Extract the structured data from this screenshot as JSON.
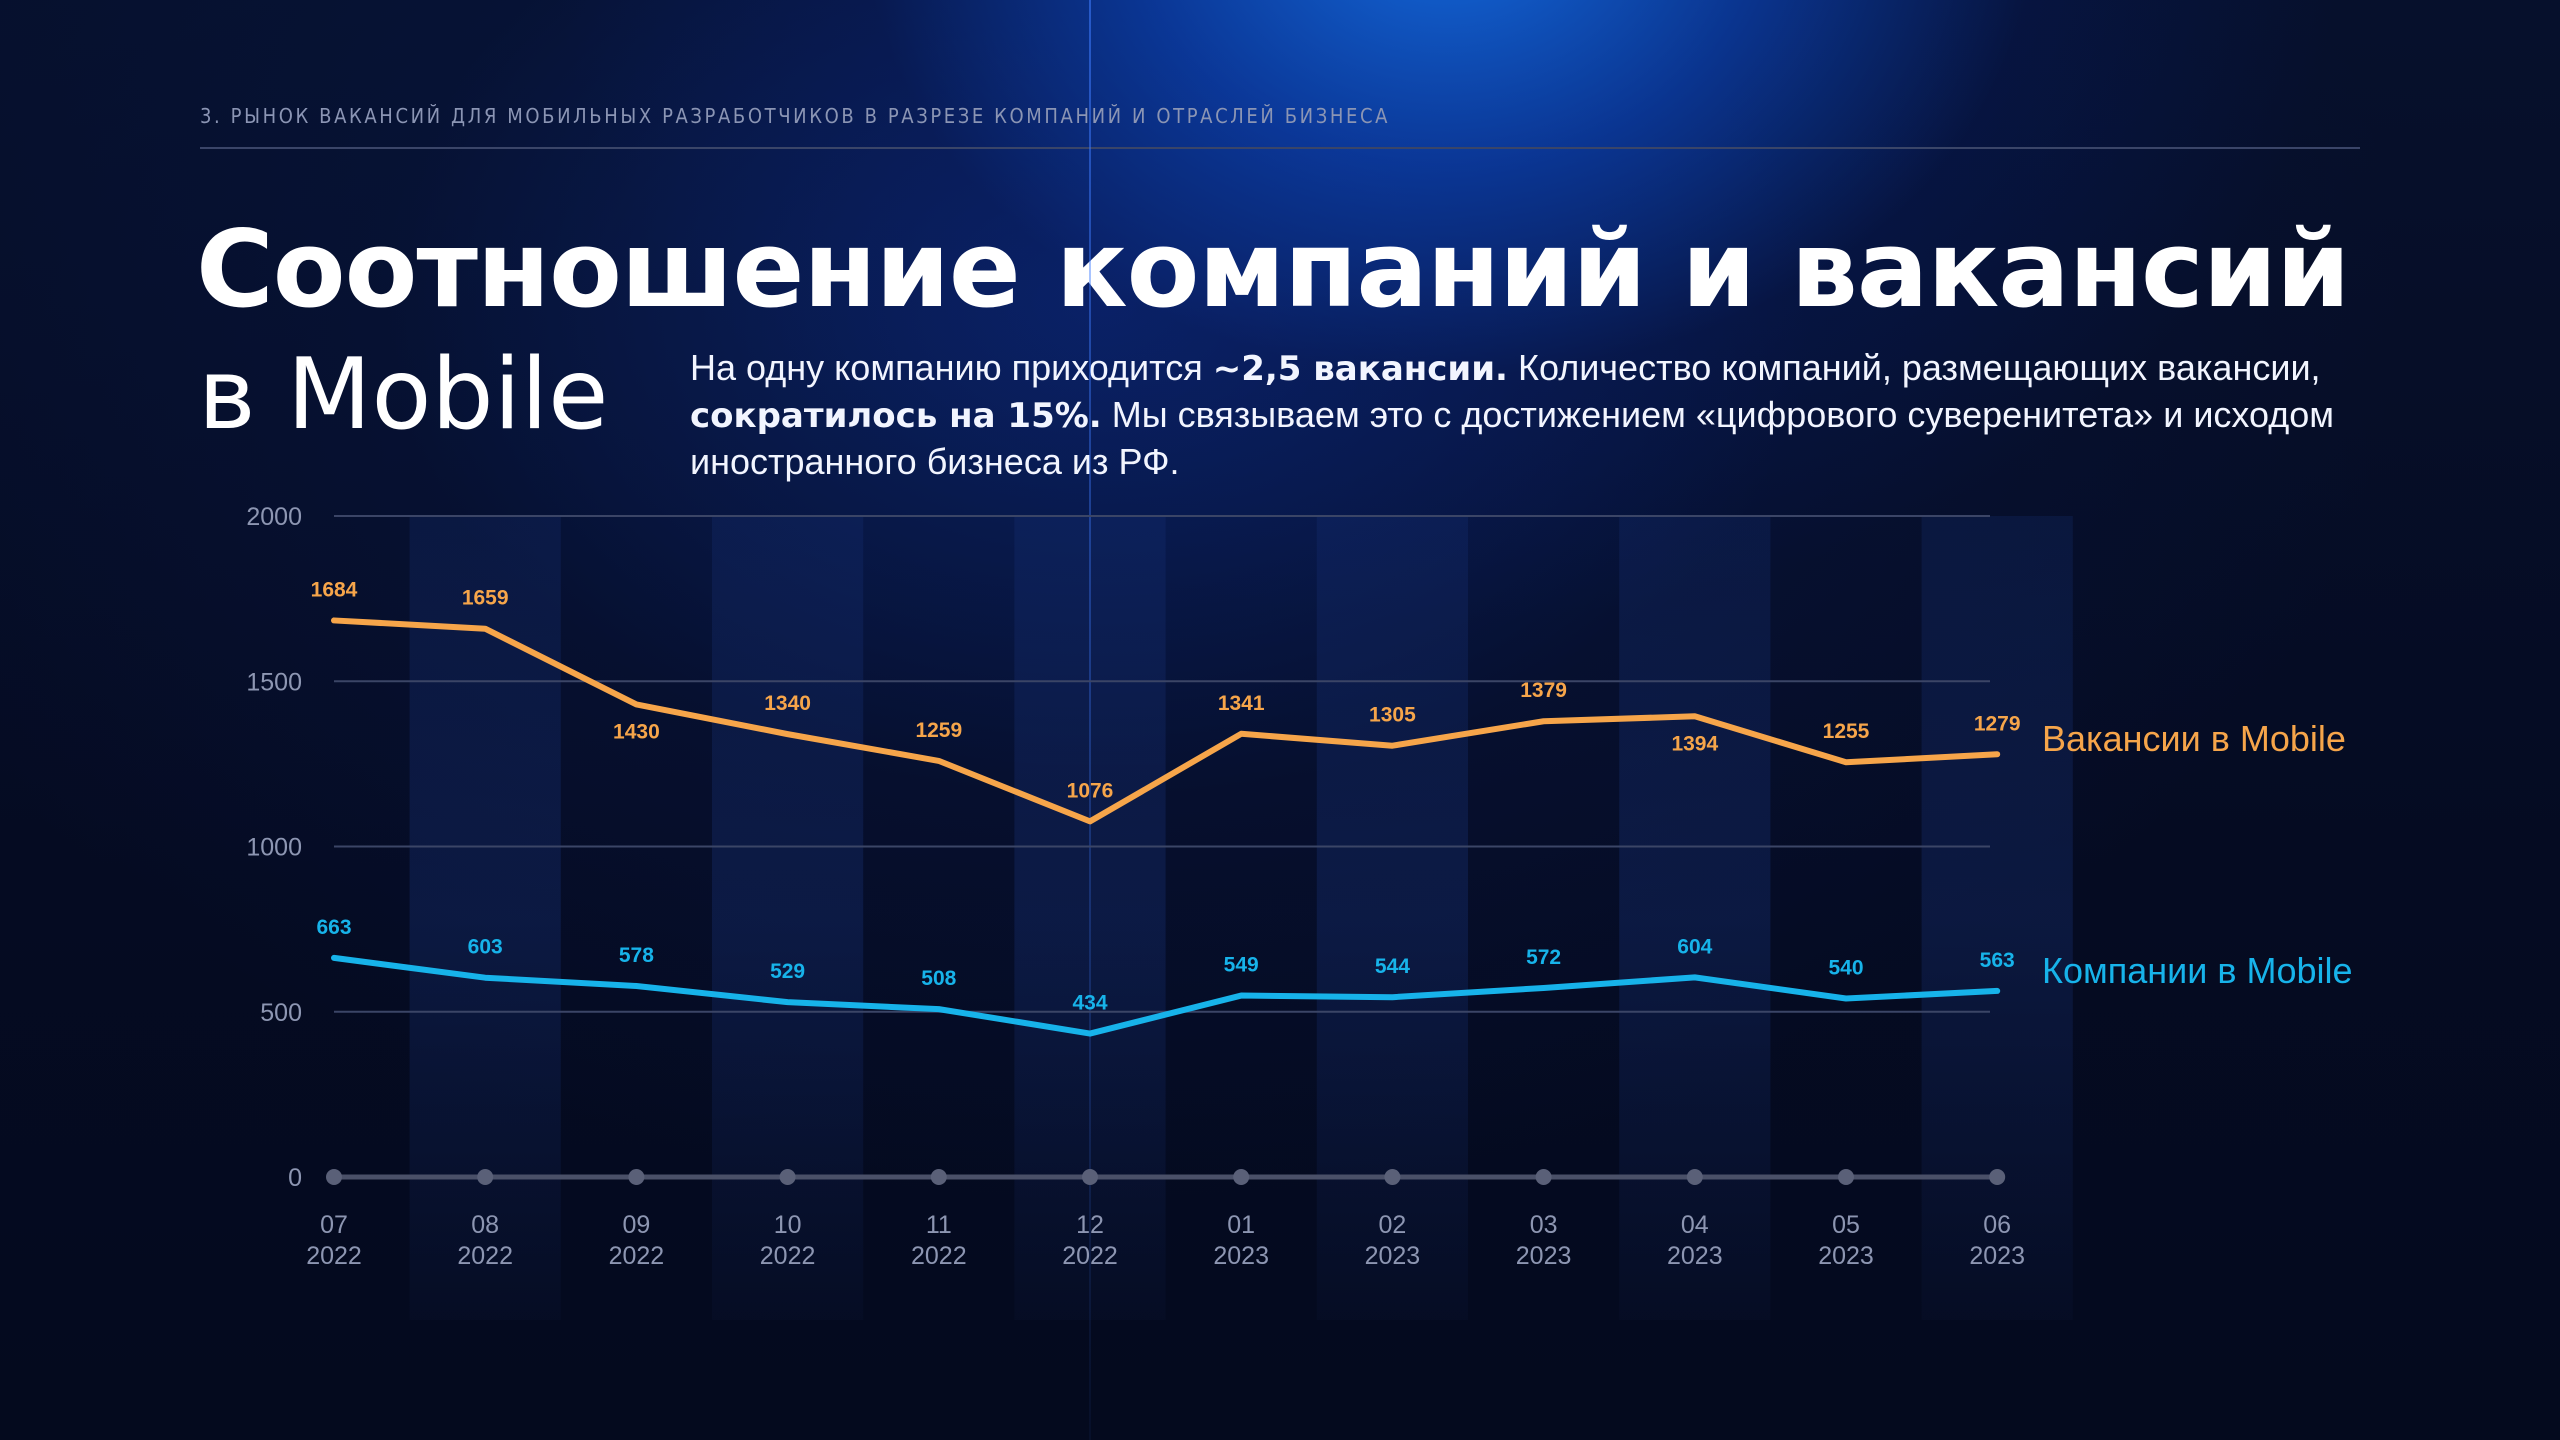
{
  "header": {
    "kicker": "3. Рынок вакансий для мобильных разработчиков в разрезе компаний и отраслей бизнеса"
  },
  "title": {
    "line1": "Соотношение компаний и вакансий",
    "line2": "в Mobile"
  },
  "description": {
    "p1": "На одну компанию приходится ",
    "b1": "~2,5 вакансии.",
    "p2": " Количество компаний, размещающих вакансии, ",
    "b2": "сократилось на 15%.",
    "p3": " Мы связываем это с достижением «цифрового суверенитета» и исходом иностранного бизнеса из РФ."
  },
  "colors": {
    "vacancies": "#f6a54a",
    "companies": "#17b3ea",
    "grid": "#3b4566",
    "axis_text": "#8d96b2",
    "baseline": "#4a5068"
  },
  "chart_data": {
    "type": "line",
    "categories": [
      {
        "month": "07",
        "year": "2022"
      },
      {
        "month": "08",
        "year": "2022"
      },
      {
        "month": "09",
        "year": "2022"
      },
      {
        "month": "10",
        "year": "2022"
      },
      {
        "month": "11",
        "year": "2022"
      },
      {
        "month": "12",
        "year": "2022"
      },
      {
        "month": "01",
        "year": "2023"
      },
      {
        "month": "02",
        "year": "2023"
      },
      {
        "month": "03",
        "year": "2023"
      },
      {
        "month": "04",
        "year": "2023"
      },
      {
        "month": "05",
        "year": "2023"
      },
      {
        "month": "06",
        "year": "2023"
      }
    ],
    "yticks": [
      0,
      500,
      1000,
      1500,
      2000
    ],
    "ylim": [
      0,
      2000
    ],
    "grid": true,
    "legend_position": "right",
    "series": [
      {
        "name": "Вакансии в Mobile",
        "key": "vacancies",
        "values": [
          1684,
          1659,
          1430,
          1340,
          1259,
          1076,
          1341,
          1305,
          1379,
          1394,
          1255,
          1279
        ],
        "labels": [
          "1684",
          "1659",
          "1430",
          "1340",
          "1259",
          "1076",
          "1341",
          "1305",
          "1379",
          "1394",
          "1255",
          "1279"
        ]
      },
      {
        "name": "Компании в Mobile",
        "key": "companies",
        "values": [
          663,
          603,
          578,
          529,
          508,
          434,
          549,
          544,
          572,
          604,
          540,
          563
        ],
        "labels": [
          "663",
          "603",
          "578",
          "529",
          "508",
          "434",
          "549",
          "544",
          "572",
          "604",
          "540",
          "563"
        ]
      }
    ]
  }
}
